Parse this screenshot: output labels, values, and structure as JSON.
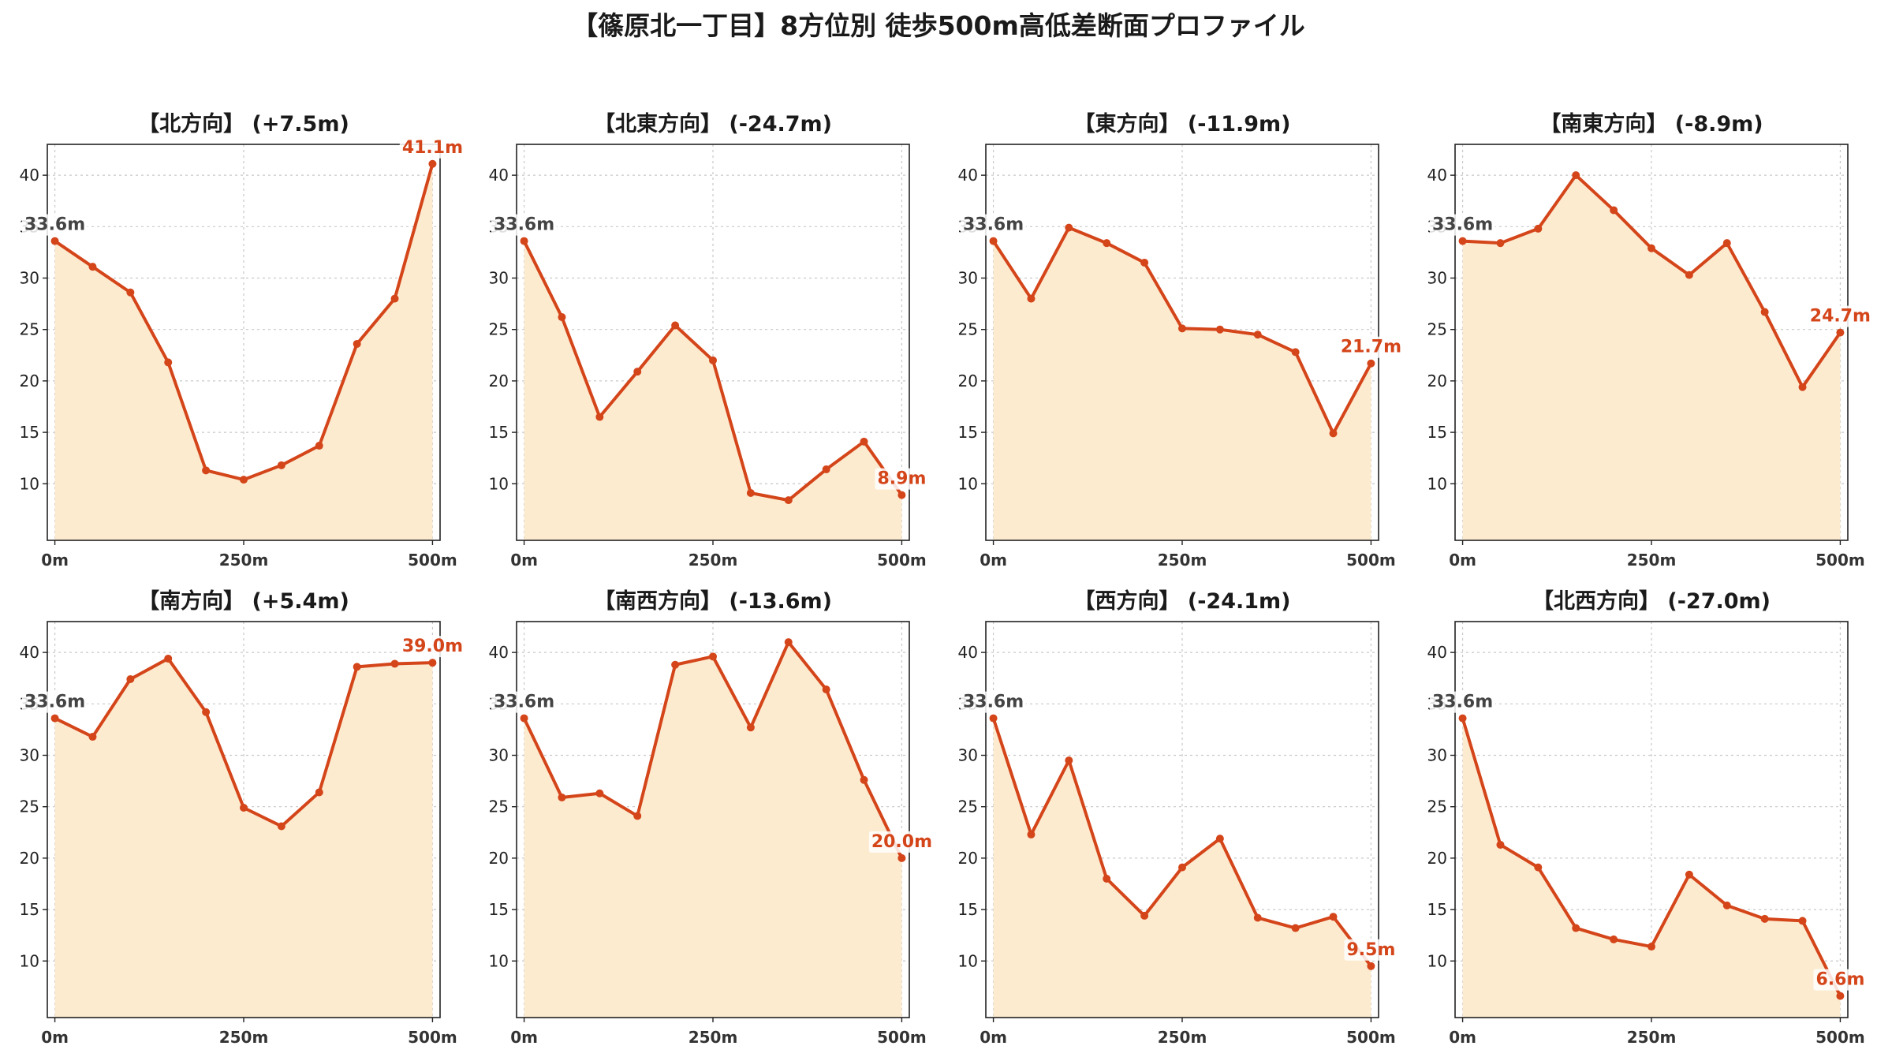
{
  "title": "【篠原北一丁目】8方位別 徒歩500m高低差断面プロファイル",
  "colors": {
    "line": "#d4451a",
    "fill": "#fdebd0",
    "start_label": "#444444",
    "end_label": "#d4451a"
  },
  "chart_data": [
    {
      "type": "area",
      "title": "【北方向】 (+7.5m)",
      "x": [
        0,
        50,
        100,
        150,
        200,
        250,
        300,
        350,
        400,
        450,
        500
      ],
      "values": [
        33.6,
        31.1,
        28.6,
        21.8,
        11.3,
        10.4,
        11.8,
        13.7,
        23.6,
        28.0,
        41.1
      ],
      "start_label": "33.6m",
      "end_label": "41.1m",
      "ylim": [
        4.5,
        43
      ],
      "yticks": [
        10,
        15,
        20,
        25,
        30,
        35,
        40
      ],
      "xlim": [
        -10,
        510
      ],
      "xticks": [
        "0m",
        "250m",
        "500m"
      ],
      "grid": true
    },
    {
      "type": "area",
      "title": "【北東方向】 (-24.7m)",
      "x": [
        0,
        50,
        100,
        150,
        200,
        250,
        300,
        350,
        400,
        450,
        500
      ],
      "values": [
        33.6,
        26.2,
        16.5,
        20.9,
        25.4,
        22.0,
        9.1,
        8.4,
        11.4,
        14.1,
        8.9
      ],
      "start_label": "33.6m",
      "end_label": "8.9m",
      "ylim": [
        4.5,
        43
      ],
      "yticks": [
        10,
        15,
        20,
        25,
        30,
        35,
        40
      ],
      "xlim": [
        -10,
        510
      ],
      "xticks": [
        "0m",
        "250m",
        "500m"
      ],
      "grid": true
    },
    {
      "type": "area",
      "title": "【東方向】 (-11.9m)",
      "x": [
        0,
        50,
        100,
        150,
        200,
        250,
        300,
        350,
        400,
        450,
        500
      ],
      "values": [
        33.6,
        28.0,
        34.9,
        33.4,
        31.5,
        25.1,
        25.0,
        24.5,
        22.8,
        14.9,
        21.7
      ],
      "start_label": "33.6m",
      "end_label": "21.7m",
      "ylim": [
        4.5,
        43
      ],
      "yticks": [
        10,
        15,
        20,
        25,
        30,
        35,
        40
      ],
      "xlim": [
        -10,
        510
      ],
      "xticks": [
        "0m",
        "250m",
        "500m"
      ],
      "grid": true
    },
    {
      "type": "area",
      "title": "【南東方向】 (-8.9m)",
      "x": [
        0,
        50,
        100,
        150,
        200,
        250,
        300,
        350,
        400,
        450,
        500
      ],
      "values": [
        33.6,
        33.4,
        34.8,
        40.0,
        36.6,
        32.9,
        30.3,
        33.4,
        26.7,
        19.4,
        24.7
      ],
      "start_label": "33.6m",
      "end_label": "24.7m",
      "ylim": [
        4.5,
        43
      ],
      "yticks": [
        10,
        15,
        20,
        25,
        30,
        35,
        40
      ],
      "xlim": [
        -10,
        510
      ],
      "xticks": [
        "0m",
        "250m",
        "500m"
      ],
      "grid": true
    },
    {
      "type": "area",
      "title": "【南方向】 (+5.4m)",
      "x": [
        0,
        50,
        100,
        150,
        200,
        250,
        300,
        350,
        400,
        450,
        500
      ],
      "values": [
        33.6,
        31.8,
        37.4,
        39.4,
        34.2,
        24.9,
        23.1,
        26.4,
        38.6,
        38.9,
        39.0
      ],
      "start_label": "33.6m",
      "end_label": "39.0m",
      "ylim": [
        4.5,
        43
      ],
      "yticks": [
        10,
        15,
        20,
        25,
        30,
        35,
        40
      ],
      "xlim": [
        -10,
        510
      ],
      "xticks": [
        "0m",
        "250m",
        "500m"
      ],
      "grid": true
    },
    {
      "type": "area",
      "title": "【南西方向】 (-13.6m)",
      "x": [
        0,
        50,
        100,
        150,
        200,
        250,
        300,
        350,
        400,
        450,
        500
      ],
      "values": [
        33.6,
        25.9,
        26.3,
        24.1,
        38.8,
        39.6,
        32.7,
        41.0,
        36.4,
        27.6,
        20.0
      ],
      "start_label": "33.6m",
      "end_label": "20.0m",
      "ylim": [
        4.5,
        43
      ],
      "yticks": [
        10,
        15,
        20,
        25,
        30,
        35,
        40
      ],
      "xlim": [
        -10,
        510
      ],
      "xticks": [
        "0m",
        "250m",
        "500m"
      ],
      "grid": true
    },
    {
      "type": "area",
      "title": "【西方向】 (-24.1m)",
      "x": [
        0,
        50,
        100,
        150,
        200,
        250,
        300,
        350,
        400,
        450,
        500
      ],
      "values": [
        33.6,
        22.3,
        29.5,
        18.0,
        14.4,
        19.1,
        21.9,
        14.2,
        13.2,
        14.3,
        9.5
      ],
      "start_label": "33.6m",
      "end_label": "9.5m",
      "ylim": [
        4.5,
        43
      ],
      "yticks": [
        10,
        15,
        20,
        25,
        30,
        35,
        40
      ],
      "xlim": [
        -10,
        510
      ],
      "xticks": [
        "0m",
        "250m",
        "500m"
      ],
      "grid": true
    },
    {
      "type": "area",
      "title": "【北西方向】 (-27.0m)",
      "x": [
        0,
        50,
        100,
        150,
        200,
        250,
        300,
        350,
        400,
        450,
        500
      ],
      "values": [
        33.6,
        21.3,
        19.1,
        13.2,
        12.1,
        11.4,
        18.4,
        15.4,
        14.1,
        13.9,
        6.6
      ],
      "start_label": "33.6m",
      "end_label": "6.6m",
      "ylim": [
        4.5,
        43
      ],
      "yticks": [
        10,
        15,
        20,
        25,
        30,
        35,
        40
      ],
      "xlim": [
        -10,
        510
      ],
      "xticks": [
        "0m",
        "250m",
        "500m"
      ],
      "grid": true
    }
  ]
}
